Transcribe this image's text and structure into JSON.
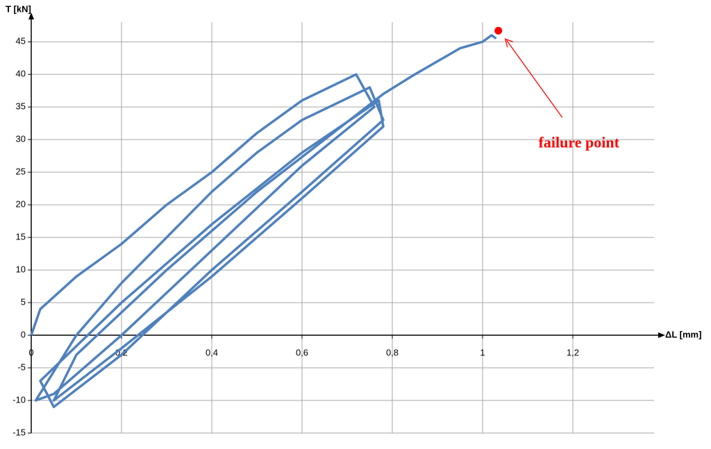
{
  "chart_data": {
    "type": "line",
    "ylabel": "T [kN]",
    "xlabel": "ΔL [mm]",
    "x": [
      0,
      0.02,
      0.1,
      0.2,
      0.3,
      0.4,
      0.5,
      0.6,
      0.72,
      0.76,
      0.6,
      0.4,
      0.2,
      0.05,
      0.01,
      0.1,
      0.2,
      0.3,
      0.4,
      0.5,
      0.6,
      0.75,
      0.78,
      0.6,
      0.4,
      0.2,
      0.05,
      0.02,
      0.2,
      0.4,
      0.6,
      0.77,
      0.78,
      0.6,
      0.4,
      0.2,
      0.05,
      0.1,
      0.3,
      0.5,
      0.65,
      0.78,
      0.85,
      0.95,
      1.0,
      1.02,
      1.03
    ],
    "series": [
      {
        "color": "#4f81bd",
        "values": [
          0,
          4,
          9,
          14,
          20,
          25,
          31,
          36,
          40,
          35,
          26,
          13,
          0,
          -9,
          -10,
          0,
          8,
          15,
          22,
          28,
          33,
          38,
          33,
          22,
          10,
          -3,
          -11,
          -7,
          5,
          17,
          28,
          36,
          32,
          21,
          9,
          -2,
          -10,
          -3,
          10,
          22,
          30,
          37,
          40,
          44,
          45,
          46,
          45.5
        ]
      }
    ],
    "xlim": [
      0,
      1.38
    ],
    "ylim": [
      -15,
      48
    ],
    "xticks": [
      0,
      {
        "value": 0.2,
        "label": "0,2"
      },
      {
        "value": 0.4,
        "label": "0,4"
      },
      {
        "value": 0.6,
        "label": "0,6"
      },
      {
        "value": 0.8,
        "label": "0,8"
      },
      1,
      {
        "value": 1.2,
        "label": "1,2"
      }
    ],
    "yticks": [
      -15,
      -10,
      -5,
      0,
      5,
      10,
      15,
      20,
      25,
      30,
      35,
      40,
      45
    ],
    "grid": true,
    "annotation": {
      "text": "failure point",
      "x": 1.035,
      "y": 46.7,
      "color": "#ff0000"
    }
  }
}
